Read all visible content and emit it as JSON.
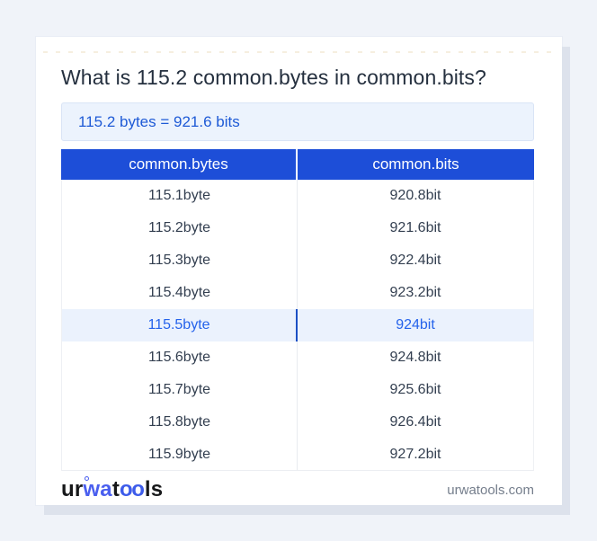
{
  "title": "What is 115.2 common.bytes in common.bits?",
  "result_text": "115.2 bytes = 921.6 bits",
  "table": {
    "headers": [
      "common.bytes",
      "common.bits"
    ],
    "rows": [
      {
        "bytes": "115.1byte",
        "bits": "920.8bit",
        "highlighted": false
      },
      {
        "bytes": "115.2byte",
        "bits": "921.6bit",
        "highlighted": false
      },
      {
        "bytes": "115.3byte",
        "bits": "922.4bit",
        "highlighted": false
      },
      {
        "bytes": "115.4byte",
        "bits": "923.2bit",
        "highlighted": false
      },
      {
        "bytes": "115.5byte",
        "bits": "924bit",
        "highlighted": true
      },
      {
        "bytes": "115.6byte",
        "bits": "924.8bit",
        "highlighted": false
      },
      {
        "bytes": "115.7byte",
        "bits": "925.6bit",
        "highlighted": false
      },
      {
        "bytes": "115.8byte",
        "bits": "926.4bit",
        "highlighted": false
      },
      {
        "bytes": "115.9byte",
        "bits": "927.2bit",
        "highlighted": false
      }
    ]
  },
  "footer": {
    "logo": {
      "seg1": "ur",
      "seg2": "wa",
      "seg3": "t",
      "seg4": "oo",
      "seg5": "ls"
    },
    "site": "urwatools.com"
  },
  "colors": {
    "header_blue": "#1d4ed8",
    "accent_blue": "#2563eb",
    "result_bg": "#ecf3fd",
    "highlight_bg": "#ebf2fd",
    "page_bg": "#f0f3f9",
    "logo_blue": "#4a5fef"
  }
}
